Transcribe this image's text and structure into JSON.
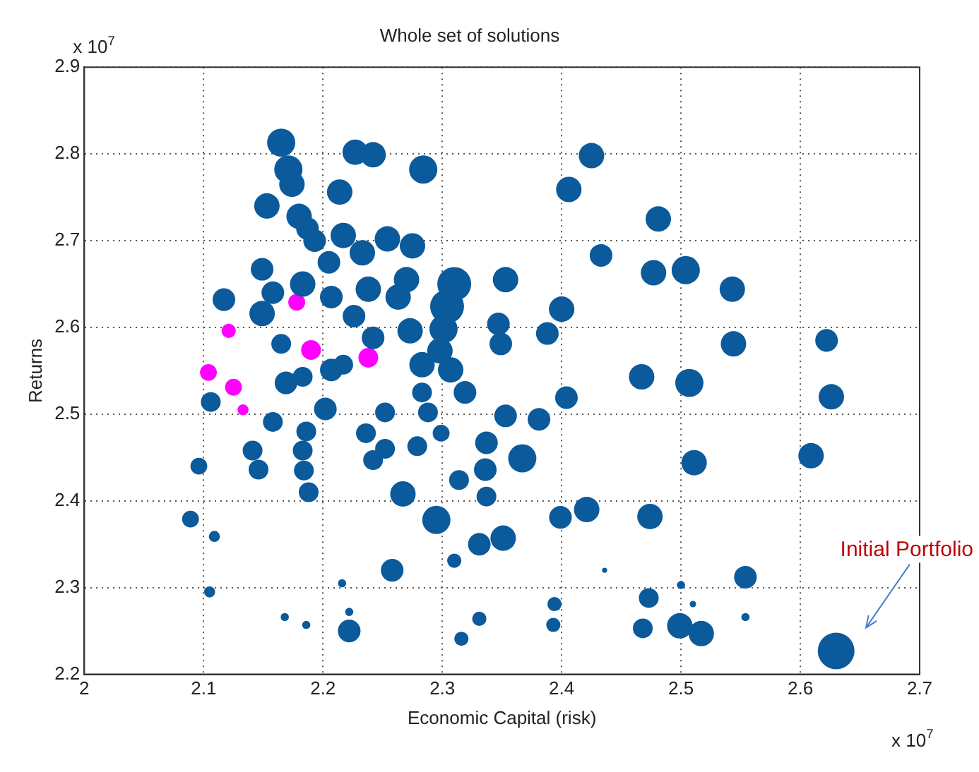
{
  "chart_data": {
    "type": "bubble",
    "title": "Whole set of solutions",
    "xlabel": "Economic Capital (risk)",
    "ylabel": "Returns",
    "xlim": [
      2,
      2.7
    ],
    "xticks": [
      2,
      2.1,
      2.2,
      2.3,
      2.4,
      2.5,
      2.6,
      2.7
    ],
    "ylim": [
      2.2,
      2.9
    ],
    "yticks": [
      2.2,
      2.3,
      2.4,
      2.5,
      2.6,
      2.7,
      2.8,
      2.9
    ],
    "grid": true,
    "legend": false,
    "marker": "circle",
    "annotations": [
      "x 10$^{7}$",
      "x 10$^{7}$",
      "Initial Portfolio"
    ],
    "series": [
      {
        "color": "#0a5a9c",
        "x": [
          2.165,
          2.171,
          2.174,
          2.214,
          2.153,
          2.18,
          2.187,
          2.193,
          2.217,
          2.205,
          2.149,
          2.183,
          2.158,
          2.117,
          2.149,
          2.207,
          2.226,
          2.227,
          2.242,
          2.165,
          2.217,
          2.284,
          2.425,
          2.406,
          2.481,
          2.254,
          2.275,
          2.233,
          2.433,
          2.477,
          2.504,
          2.543,
          2.31,
          2.304,
          2.301,
          2.298,
          2.353,
          2.27,
          2.238,
          2.263,
          2.4,
          2.388,
          2.347,
          2.349,
          2.273,
          2.242,
          2.544,
          2.622,
          2.467,
          2.307,
          2.283,
          2.507,
          2.626,
          2.511,
          2.609,
          2.106,
          2.158,
          2.141,
          2.146,
          2.186,
          2.183,
          2.184,
          2.188,
          2.096,
          2.089,
          2.109,
          2.105,
          2.168,
          2.186,
          2.216,
          2.222,
          2.222,
          2.202,
          2.169,
          2.183,
          2.207,
          2.252,
          2.236,
          2.252,
          2.242,
          2.279,
          2.299,
          2.288,
          2.283,
          2.319,
          2.353,
          2.381,
          2.404,
          2.337,
          2.367,
          2.336,
          2.314,
          2.337,
          2.267,
          2.295,
          2.331,
          2.351,
          2.31,
          2.258,
          2.399,
          2.421,
          2.474,
          2.436,
          2.394,
          2.393,
          2.331,
          2.316,
          2.473,
          2.468,
          2.554,
          2.5,
          2.51,
          2.554,
          2.499,
          2.517,
          2.63
        ],
        "values": [
          2.813,
          2.782,
          2.765,
          2.756,
          2.74,
          2.728,
          2.714,
          2.7,
          2.706,
          2.675,
          2.667,
          2.65,
          2.64,
          2.632,
          2.616,
          2.635,
          2.613,
          2.802,
          2.799,
          2.581,
          2.557,
          2.782,
          2.798,
          2.759,
          2.725,
          2.702,
          2.694,
          2.686,
          2.683,
          2.663,
          2.666,
          2.644,
          2.65,
          2.624,
          2.598,
          2.573,
          2.655,
          2.655,
          2.644,
          2.635,
          2.621,
          2.593,
          2.604,
          2.581,
          2.596,
          2.588,
          2.581,
          2.585,
          2.543,
          2.551,
          2.557,
          2.536,
          2.52,
          2.444,
          2.452,
          2.514,
          2.491,
          2.458,
          2.436,
          2.48,
          2.458,
          2.435,
          2.41,
          2.44,
          2.379,
          2.359,
          2.295,
          2.266,
          2.257,
          2.305,
          2.272,
          2.25,
          2.506,
          2.536,
          2.543,
          2.551,
          2.502,
          2.478,
          2.46,
          2.447,
          2.463,
          2.478,
          2.502,
          2.525,
          2.525,
          2.498,
          2.494,
          2.519,
          2.467,
          2.449,
          2.436,
          2.424,
          2.405,
          2.408,
          2.378,
          2.35,
          2.357,
          2.331,
          2.32,
          2.381,
          2.39,
          2.382,
          2.32,
          2.281,
          2.257,
          2.264,
          2.241,
          2.288,
          2.253,
          2.312,
          2.303,
          2.281,
          2.266,
          2.256,
          2.247,
          2.227
        ],
        "sizes": [
          0.59,
          0.59,
          0.48,
          0.48,
          0.48,
          0.48,
          0.38,
          0.38,
          0.48,
          0.38,
          0.38,
          0.48,
          0.38,
          0.38,
          0.48,
          0.38,
          0.38,
          0.48,
          0.48,
          0.29,
          0.29,
          0.59,
          0.48,
          0.48,
          0.48,
          0.48,
          0.48,
          0.48,
          0.38,
          0.48,
          0.59,
          0.48,
          0.85,
          0.85,
          0.59,
          0.48,
          0.48,
          0.48,
          0.48,
          0.48,
          0.48,
          0.38,
          0.38,
          0.38,
          0.48,
          0.38,
          0.48,
          0.38,
          0.48,
          0.48,
          0.48,
          0.59,
          0.48,
          0.48,
          0.48,
          0.29,
          0.29,
          0.29,
          0.29,
          0.29,
          0.29,
          0.29,
          0.29,
          0.21,
          0.21,
          0.09,
          0.09,
          0.05,
          0.05,
          0.05,
          0.05,
          0.38,
          0.38,
          0.38,
          0.29,
          0.38,
          0.29,
          0.29,
          0.29,
          0.29,
          0.29,
          0.21,
          0.29,
          0.29,
          0.38,
          0.38,
          0.38,
          0.38,
          0.38,
          0.59,
          0.38,
          0.29,
          0.29,
          0.48,
          0.59,
          0.38,
          0.48,
          0.15,
          0.38,
          0.38,
          0.48,
          0.48,
          0.02,
          0.15,
          0.15,
          0.15,
          0.15,
          0.29,
          0.29,
          0.38,
          0.05,
          0.03,
          0.05,
          0.48,
          0.48,
          1
        ]
      },
      {
        "color": "#ff00ff",
        "x": [
          2.104,
          2.125,
          2.133,
          2.121,
          2.178,
          2.19,
          2.238
        ],
        "values": [
          2.548,
          2.531,
          2.505,
          2.596,
          2.629,
          2.574,
          2.565
        ],
        "sizes": [
          0.21,
          0.21,
          0.09,
          0.15,
          0.21,
          0.29,
          0.29
        ]
      }
    ]
  }
}
